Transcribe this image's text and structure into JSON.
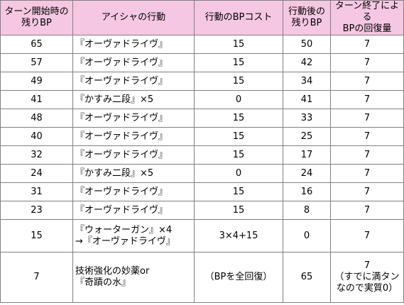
{
  "colors": {
    "header_bg": "#f5c7e2",
    "border": "#808080",
    "body_bg": "#ffffff"
  },
  "headers": {
    "col1": [
      "ターン開始時の",
      "残りBP"
    ],
    "col2": [
      "アイシャの行動"
    ],
    "col3": [
      "行動のBPコスト"
    ],
    "col4": [
      "行動後の",
      "残りBP"
    ],
    "col5": [
      "ターン終了による",
      "BPの回復量"
    ]
  },
  "rows": [
    {
      "start": "65",
      "action": [
        "『オーヴァドライヴ』"
      ],
      "cost": "15",
      "after": "50",
      "recover": [
        "7"
      ]
    },
    {
      "start": "57",
      "action": [
        "『オーヴァドライヴ』"
      ],
      "cost": "15",
      "after": "42",
      "recover": [
        "7"
      ]
    },
    {
      "start": "49",
      "action": [
        "『オーヴァドライヴ』"
      ],
      "cost": "15",
      "after": "34",
      "recover": [
        "7"
      ]
    },
    {
      "start": "41",
      "action": [
        "『かすみ二段』×5"
      ],
      "cost": "0",
      "after": "41",
      "recover": [
        "7"
      ]
    },
    {
      "start": "48",
      "action": [
        "『オーヴァドライヴ』"
      ],
      "cost": "15",
      "after": "33",
      "recover": [
        "7"
      ]
    },
    {
      "start": "40",
      "action": [
        "『オーヴァドライヴ』"
      ],
      "cost": "15",
      "after": "25",
      "recover": [
        "7"
      ]
    },
    {
      "start": "32",
      "action": [
        "『オーヴァドライヴ』"
      ],
      "cost": "15",
      "after": "17",
      "recover": [
        "7"
      ]
    },
    {
      "start": "24",
      "action": [
        "『かすみ二段』×5"
      ],
      "cost": "0",
      "after": "24",
      "recover": [
        "7"
      ]
    },
    {
      "start": "31",
      "action": [
        "『オーヴァドライヴ』"
      ],
      "cost": "15",
      "after": "16",
      "recover": [
        "7"
      ]
    },
    {
      "start": "23",
      "action": [
        "『オーヴァドライヴ』"
      ],
      "cost": "15",
      "after": "8",
      "recover": [
        "7"
      ]
    },
    {
      "start": "15",
      "action": [
        "『ウォーターガン』×4",
        "→『オーヴァドライヴ』"
      ],
      "cost": "3×4+15",
      "after": "0",
      "recover": [
        "7"
      ]
    },
    {
      "start": "7",
      "action": [
        "技術強化の妙薬or",
        "『奇蹟の水』"
      ],
      "cost": "（BPを全回復）",
      "after": "65",
      "recover": [
        "7",
        "（すでに満タン",
        "なので実質0）"
      ]
    }
  ]
}
